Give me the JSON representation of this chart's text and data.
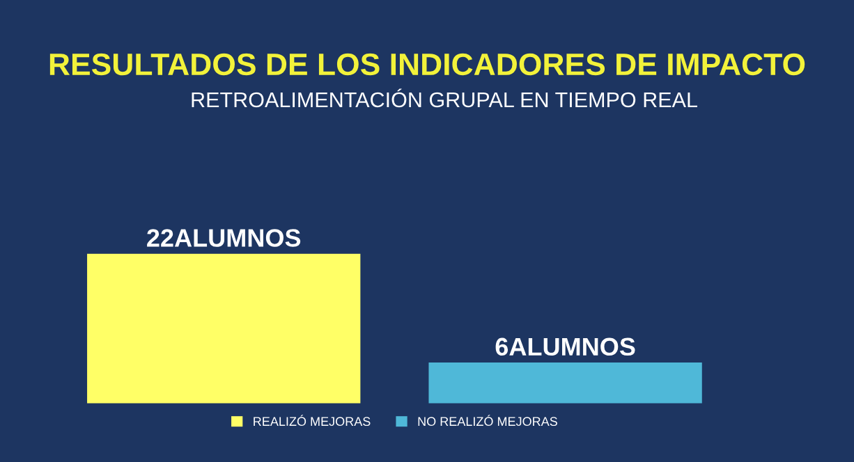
{
  "chart_data": {
    "type": "bar",
    "title": "RESULTADOS DE LOS INDICADORES DE IMPACTO",
    "subtitle": "RETROALIMENTACIÓN GRUPAL EN TIEMPO REAL",
    "categories": [
      null,
      null
    ],
    "stacked": true,
    "series": [
      {
        "name": "REALIZÓ MEJORAS",
        "color": "#ffff66",
        "values": [
          22,
          null
        ],
        "value_labels": [
          "22ALUMNOS",
          null
        ]
      },
      {
        "name": "NO REALIZÓ MEJORAS",
        "color": "#4fb8d8",
        "values": [
          null,
          6
        ],
        "value_labels": [
          null,
          "6ALUMNOS"
        ]
      }
    ],
    "legend": "bottom",
    "grid": false,
    "tick_labels": false
  }
}
